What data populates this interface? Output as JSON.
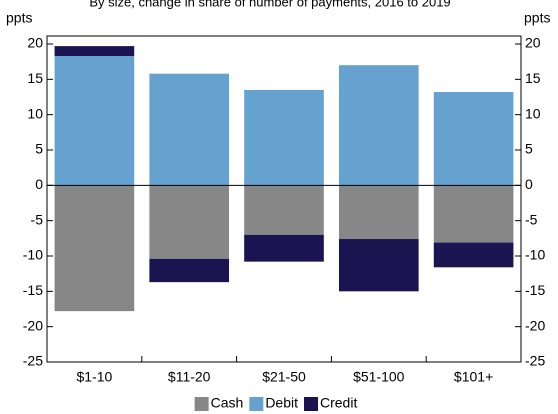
{
  "chart_data": {
    "type": "bar",
    "stacked": true,
    "title": "By size, change in share of number of payments, 2016 to 2019",
    "ylabel": "ppts",
    "y2label": "ppts",
    "categories": [
      "$1-10",
      "$11-20",
      "$21-50",
      "$51-100",
      "$101+"
    ],
    "series": [
      {
        "name": "Cash",
        "color": "#878787",
        "values": [
          -17.8,
          -10.4,
          -7.0,
          -7.6,
          -8.1
        ]
      },
      {
        "name": "Debit",
        "color": "#65a2d0",
        "values": [
          18.3,
          15.8,
          13.5,
          17.0,
          13.2
        ]
      },
      {
        "name": "Credit",
        "color": "#1a1450",
        "values": [
          1.4,
          -3.3,
          -3.8,
          -7.4,
          -3.5
        ]
      }
    ],
    "ylim": [
      -25,
      20
    ],
    "yticks": [
      -25,
      -20,
      -15,
      -10,
      -5,
      0,
      5,
      10,
      15,
      20
    ],
    "y2lim": [
      -25,
      20
    ],
    "y2ticks": [
      -25,
      -20,
      -15,
      -10,
      -5,
      0,
      5,
      10,
      15,
      20
    ],
    "grid": false,
    "legend": "bottom"
  }
}
